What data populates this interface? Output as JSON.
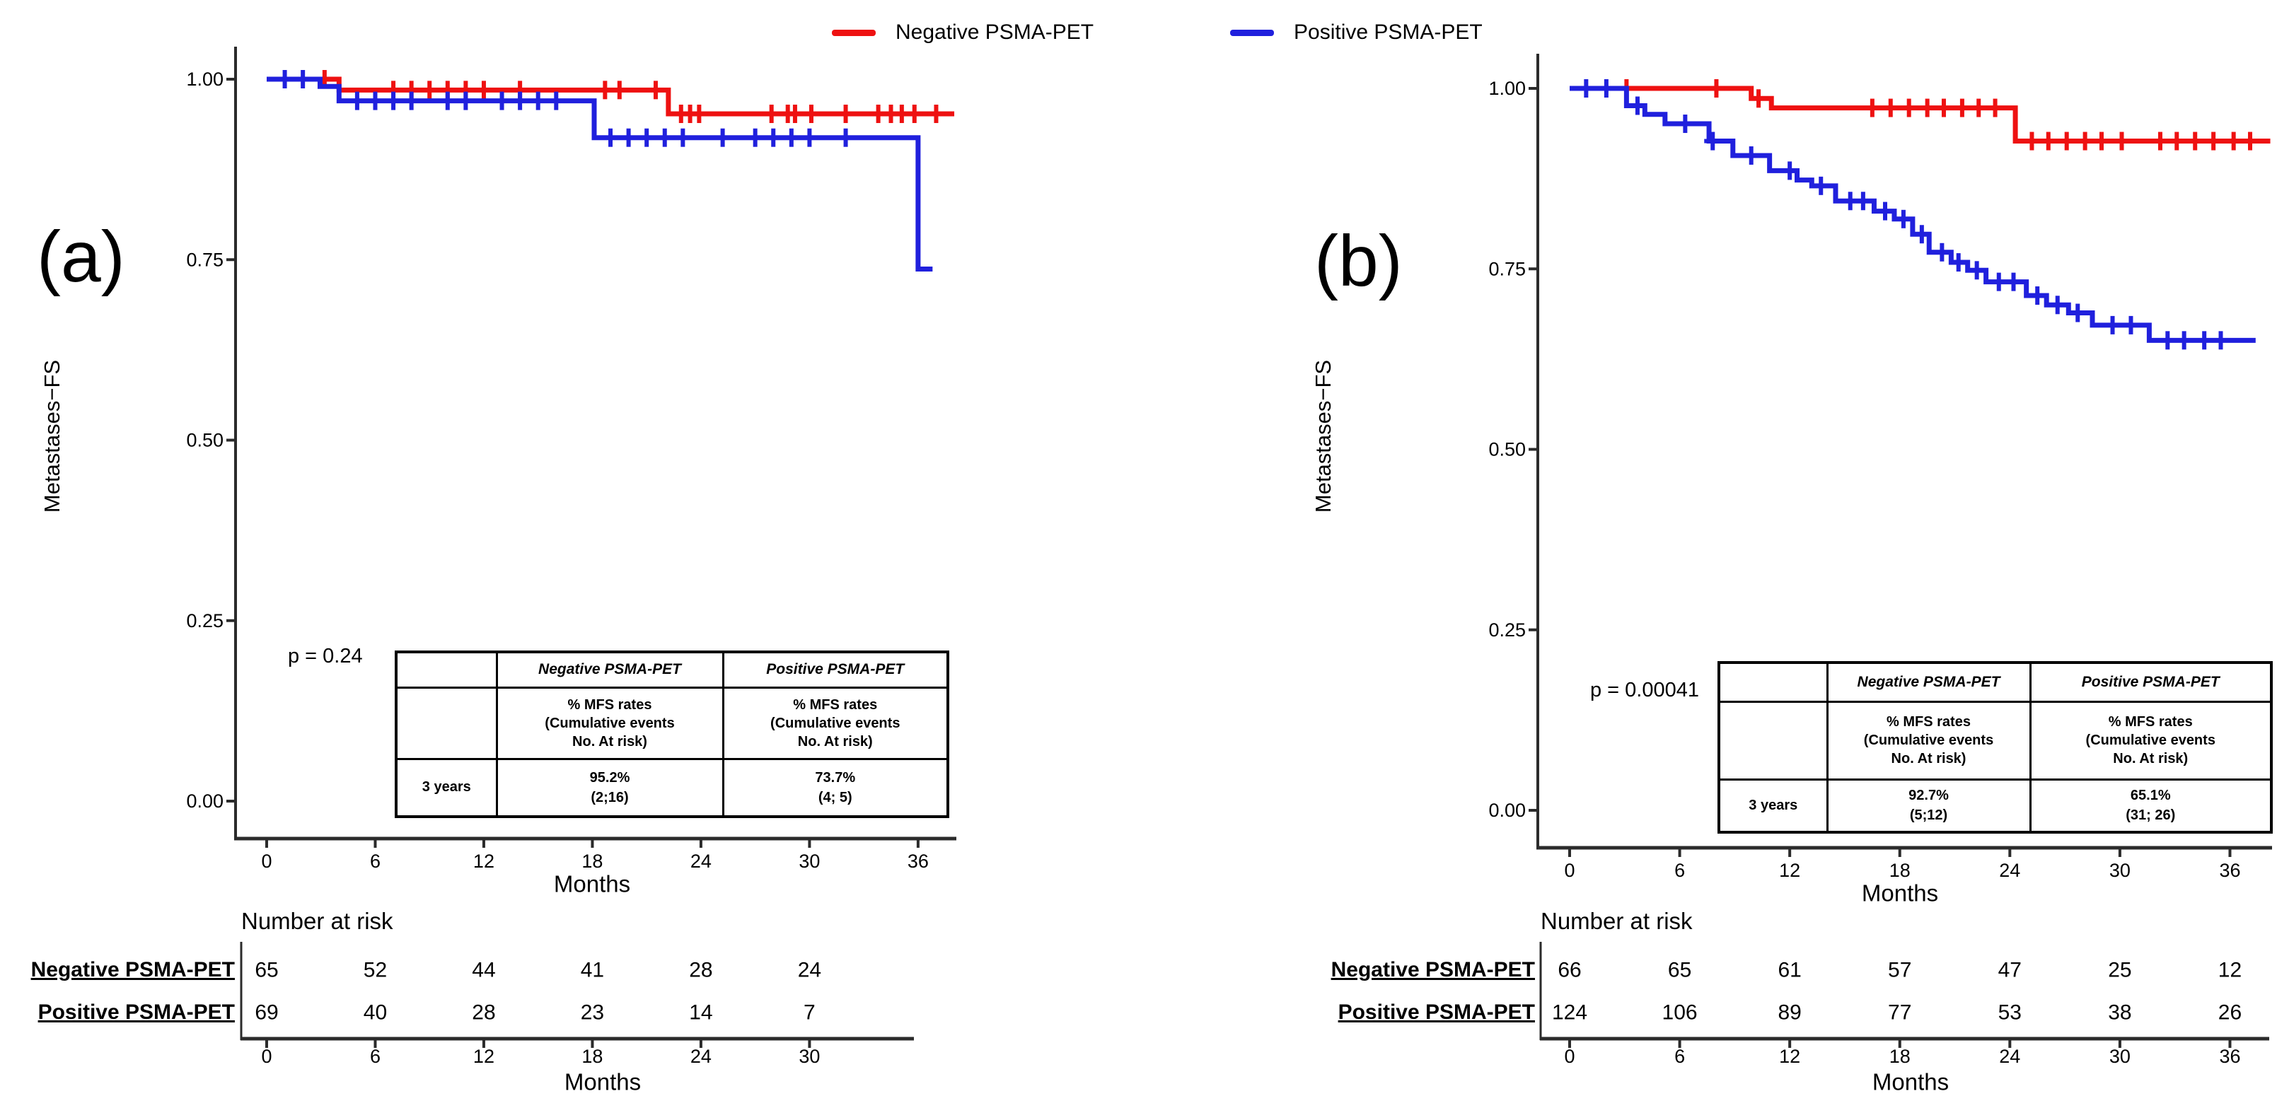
{
  "legend": {
    "items": [
      {
        "label": "Negative PSMA-PET",
        "color": "#ee1111"
      },
      {
        "label": "Positive PSMA-PET",
        "color": "#2020dd"
      }
    ]
  },
  "panels": [
    {
      "tag": "(a)",
      "y_axis_label": "Metastases−FS",
      "x_axis_label": "Months",
      "p_value": "p = 0.24",
      "inset_table": {
        "columns": [
          "Negative PSMA-PET",
          "Positive PSMA-PET"
        ],
        "metric": "% MFS rates\n(Cumulative events\nNo. At risk)",
        "row_label": "3 years",
        "values": [
          "95.2%\n(2;16)",
          "73.7%\n(4; 5)"
        ]
      },
      "risk_table": {
        "title": "Number at risk",
        "x_label": "Months",
        "ticks": [
          0,
          6,
          12,
          18,
          24,
          30
        ],
        "rows": [
          {
            "label": "Negative PSMA-PET",
            "counts": [
              65,
              52,
              44,
              41,
              28,
              24
            ]
          },
          {
            "label": "Positive PSMA-PET",
            "counts": [
              69,
              40,
              28,
              23,
              14,
              7
            ]
          }
        ]
      }
    },
    {
      "tag": "(b)",
      "y_axis_label": "Metastases−FS",
      "x_axis_label": "Months",
      "p_value": "p = 0.00041",
      "inset_table": {
        "columns": [
          "Negative PSMA-PET",
          "Positive PSMA-PET"
        ],
        "metric": "% MFS rates\n(Cumulative events\nNo. At risk)",
        "row_label": "3 years",
        "values": [
          "92.7%\n(5;12)",
          "65.1%\n(31; 26)"
        ]
      },
      "risk_table": {
        "title": "Number at risk",
        "x_label": "Months",
        "ticks": [
          0,
          6,
          12,
          18,
          24,
          30,
          36
        ],
        "rows": [
          {
            "label": "Negative PSMA-PET",
            "counts": [
              66,
              65,
              61,
              57,
              47,
              25,
              12
            ]
          },
          {
            "label": "Positive PSMA-PET",
            "counts": [
              124,
              106,
              89,
              77,
              53,
              38,
              26
            ]
          }
        ]
      }
    }
  ],
  "chart_data": [
    {
      "type": "line",
      "subtype": "kaplan_meier_step",
      "panel": "(a)",
      "title": "",
      "xlabel": "Months",
      "ylabel": "Metastases−FS",
      "xlim": [
        0,
        38
      ],
      "ylim": [
        0,
        1.0
      ],
      "xticks": [
        0,
        6,
        12,
        18,
        24,
        30,
        36
      ],
      "yticks": [
        0.0,
        0.25,
        0.5,
        0.75,
        1.0
      ],
      "legend_position": "top",
      "grid": false,
      "annotations": {
        "p_value": "p = 0.24"
      },
      "series": [
        {
          "name": "Negative PSMA-PET",
          "color": "#ee1111",
          "steps": [
            [
              0,
              1.0
            ],
            [
              4.0,
              0.985
            ],
            [
              22.2,
              0.952
            ]
          ],
          "end_x": 38.0,
          "censors": [
            3.2,
            7,
            8,
            9,
            10,
            11,
            12,
            14,
            18.7,
            19.5,
            21.5,
            22.9,
            23.4,
            23.9,
            27.9,
            28.8,
            29.2,
            30.1,
            32.0,
            33.8,
            34.5,
            35.1,
            35.8,
            37.0
          ]
        },
        {
          "name": "Positive PSMA-PET",
          "color": "#2020dd",
          "steps": [
            [
              0,
              1.0
            ],
            [
              2.95,
              0.99
            ],
            [
              4.0,
              0.97
            ],
            [
              18.1,
              0.919
            ],
            [
              36.0,
              0.737
            ]
          ],
          "end_x": 36.8,
          "censors": [
            1,
            2,
            5,
            6,
            7,
            8,
            10,
            11,
            13,
            14,
            15,
            16,
            19,
            20,
            21,
            22,
            23,
            25.2,
            27,
            28,
            29,
            30,
            32
          ]
        }
      ]
    },
    {
      "type": "line",
      "subtype": "kaplan_meier_step",
      "panel": "(b)",
      "title": "",
      "xlabel": "Months",
      "ylabel": "Metastases−FS",
      "xlim": [
        0,
        38
      ],
      "ylim": [
        0,
        1.0
      ],
      "xticks": [
        0,
        6,
        12,
        18,
        24,
        30,
        36
      ],
      "yticks": [
        0.0,
        0.25,
        0.5,
        0.75,
        1.0
      ],
      "legend_position": "top",
      "grid": false,
      "annotations": {
        "p_value": "p = 0.00041"
      },
      "series": [
        {
          "name": "Negative PSMA-PET",
          "color": "#ee1111",
          "steps": [
            [
              0,
              1.0
            ],
            [
              9.9,
              0.986
            ],
            [
              11.0,
              0.973
            ],
            [
              24.3,
              0.927
            ]
          ],
          "end_x": 38.2,
          "censors": [
            3.1,
            8.0,
            10.3,
            16.5,
            17.5,
            18.5,
            19.5,
            20.4,
            21.4,
            22.3,
            23.2,
            25.2,
            26.1,
            27.1,
            28.1,
            29.0,
            30.1,
            32.2,
            33.1,
            34.1,
            35.1,
            36.2,
            37.1
          ]
        },
        {
          "name": "Positive PSMA-PET",
          "color": "#2020dd",
          "steps": [
            [
              0,
              1.0
            ],
            [
              3.1,
              0.976
            ],
            [
              4.1,
              0.964
            ],
            [
              5.2,
              0.951
            ],
            [
              7.6,
              0.927
            ],
            [
              8.9,
              0.907
            ],
            [
              10.9,
              0.886
            ],
            [
              12.4,
              0.873
            ],
            [
              13.2,
              0.865
            ],
            [
              14.5,
              0.844
            ],
            [
              16.6,
              0.83
            ],
            [
              17.7,
              0.819
            ],
            [
              18.7,
              0.798
            ],
            [
              19.6,
              0.773
            ],
            [
              20.8,
              0.759
            ],
            [
              21.7,
              0.748
            ],
            [
              22.7,
              0.732
            ],
            [
              24.9,
              0.713
            ],
            [
              26.0,
              0.7
            ],
            [
              27.2,
              0.689
            ],
            [
              28.5,
              0.672
            ],
            [
              31.6,
              0.651
            ]
          ],
          "end_x": 37.4,
          "censors": [
            0.9,
            2.0,
            3.7,
            6.3,
            7.8,
            9.9,
            12.0,
            13.7,
            15.3,
            16.0,
            17.2,
            18.2,
            19.2,
            20.3,
            21.2,
            22.2,
            23.4,
            24.2,
            25.5,
            26.6,
            27.7,
            29.6,
            30.6,
            32.6,
            33.5,
            34.6,
            35.5
          ]
        }
      ]
    }
  ]
}
